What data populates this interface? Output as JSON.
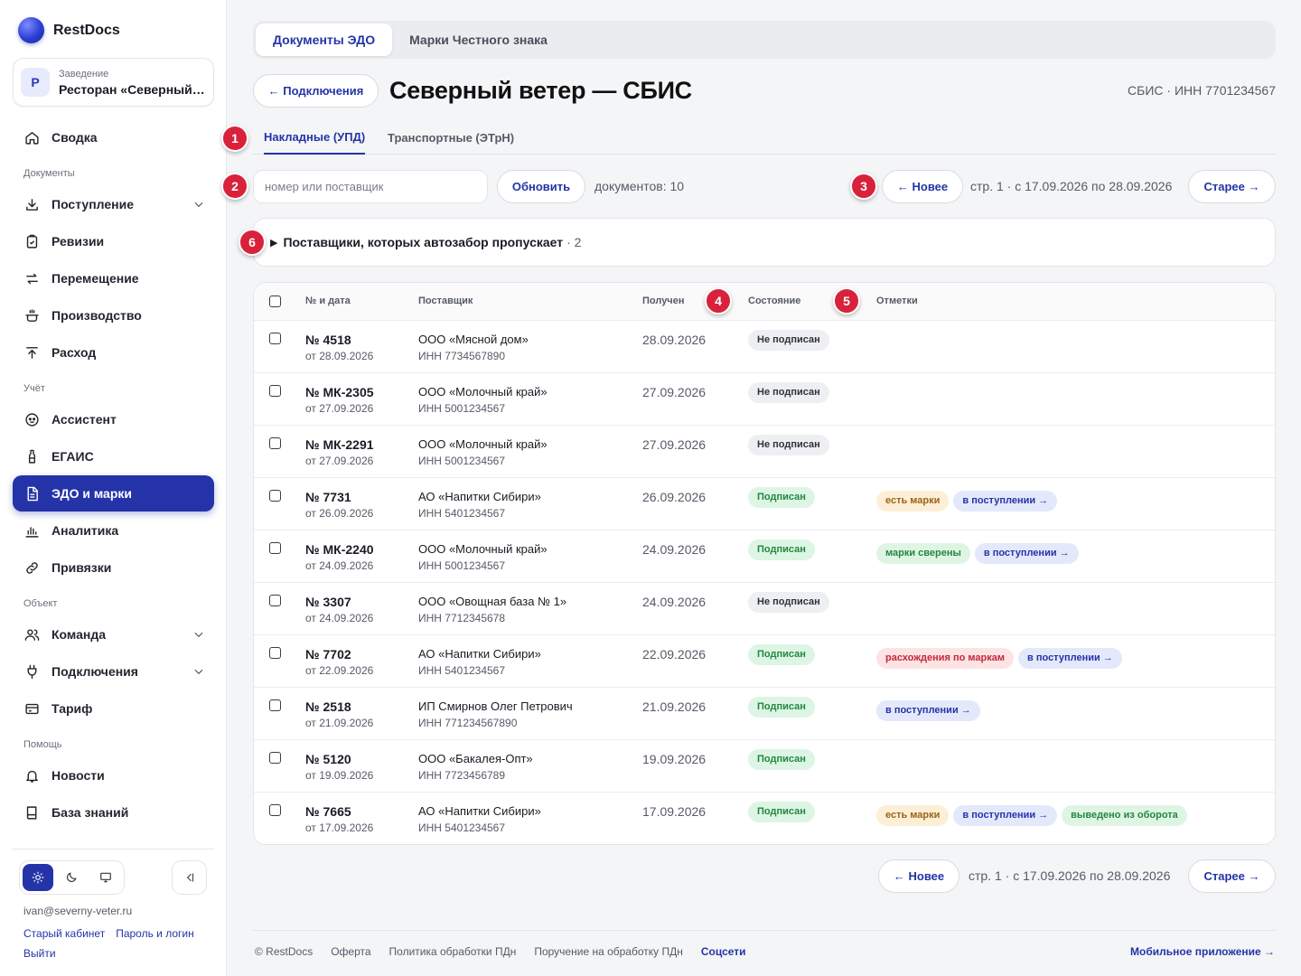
{
  "app": {
    "name": "RestDocs"
  },
  "venue": {
    "caption": "Заведение",
    "avatar": "Р",
    "name": "Ресторан «Северный ветер»"
  },
  "sidebar": {
    "items": [
      {
        "key": "summary",
        "label": "Сводка",
        "icon": "home-icon"
      },
      {
        "key": "section-docs",
        "label": "Документы"
      },
      {
        "key": "receipts",
        "label": "Поступление",
        "icon": "download-icon",
        "expandable": true
      },
      {
        "key": "audits",
        "label": "Ревизии",
        "icon": "clipboard-icon"
      },
      {
        "key": "transfer",
        "label": "Перемещение",
        "icon": "arrows-icon"
      },
      {
        "key": "production",
        "label": "Производство",
        "icon": "pot-icon"
      },
      {
        "key": "expense",
        "label": "Расход",
        "icon": "upload-icon"
      },
      {
        "key": "section-account",
        "label": "Учёт"
      },
      {
        "key": "assistant",
        "label": "Ассистент",
        "icon": "assistant-icon"
      },
      {
        "key": "egais",
        "label": "ЕГАИС",
        "icon": "bottle-icon"
      },
      {
        "key": "edo",
        "label": "ЭДО и марки",
        "icon": "document-icon",
        "active": true
      },
      {
        "key": "analytics",
        "label": "Аналитика",
        "icon": "bar-chart-icon"
      },
      {
        "key": "bindings",
        "label": "Привязки",
        "icon": "link-icon"
      },
      {
        "key": "section-object",
        "label": "Объект"
      },
      {
        "key": "team",
        "label": "Команда",
        "icon": "users-icon",
        "expandable": true
      },
      {
        "key": "connections",
        "label": "Подключения",
        "icon": "plug-icon",
        "expandable": true
      },
      {
        "key": "tariff",
        "label": "Тариф",
        "icon": "card-icon"
      },
      {
        "key": "section-help",
        "label": "Помощь"
      },
      {
        "key": "news",
        "label": "Новости",
        "icon": "bell-icon"
      },
      {
        "key": "kb",
        "label": "База знаний",
        "icon": "book-icon"
      }
    ],
    "theme": {
      "selected": "light"
    },
    "user_email": "ivan@severny-veter.ru",
    "old_cabinet": "Старый кабинет",
    "password_login": "Пароль и логин",
    "logout": "Выйти"
  },
  "top_tabs": [
    "Документы ЭДО",
    "Марки Честного знака"
  ],
  "header": {
    "back_label": "← Подключения",
    "title": "Северный ветер — СБИС",
    "meta": "СБИС · ИНН 7701234567"
  },
  "doc_tabs": [
    "Накладные (УПД)",
    "Транспортные (ЭТрН)"
  ],
  "toolbar": {
    "search_placeholder": "номер или поставщик",
    "search_value": "",
    "refresh_label": "Обновить",
    "doc_count": "документов: 10"
  },
  "pagination": {
    "newer_label": "← Новее",
    "older_label": "Старее →",
    "range": "стр. 1 · с 17.09.2026 по 28.09.2026"
  },
  "skip_panel": {
    "title": "Поставщики, которых автозабор пропускает",
    "count": "· 2"
  },
  "markers": [
    "1",
    "2",
    "3",
    "4",
    "5",
    "6"
  ],
  "table": {
    "columns": [
      "№ и дата",
      "Поставщик",
      "Получен",
      "Состояние",
      "Отметки"
    ],
    "rows": [
      {
        "num": "№ 4518",
        "date": "от 28.09.2026",
        "supplier": "ООО «Мясной дом»",
        "inn": "ИНН 7734567890",
        "received": "28.09.2026",
        "state": "Не подписан",
        "marks": []
      },
      {
        "num": "№ МК-2305",
        "date": "от 27.09.2026",
        "supplier": "ООО «Молочный край»",
        "inn": "ИНН 5001234567",
        "received": "27.09.2026",
        "state": "Не подписан",
        "marks": []
      },
      {
        "num": "№ МК-2291",
        "date": "от 27.09.2026",
        "supplier": "ООО «Молочный край»",
        "inn": "ИНН 5001234567",
        "received": "27.09.2026",
        "state": "Не подписан",
        "marks": []
      },
      {
        "num": "№ 7731",
        "date": "от 26.09.2026",
        "supplier": "АО «Напитки Сибири»",
        "inn": "ИНН 5401234567",
        "received": "26.09.2026",
        "state": "Подписан",
        "marks": [
          {
            "text": "есть марки",
            "kind": "amber"
          },
          {
            "text": "в поступлении →",
            "kind": "blue"
          }
        ]
      },
      {
        "num": "№ МК-2240",
        "date": "от 24.09.2026",
        "supplier": "ООО «Молочный край»",
        "inn": "ИНН 5001234567",
        "received": "24.09.2026",
        "state": "Подписан",
        "marks": [
          {
            "text": "марки сверены",
            "kind": "green"
          },
          {
            "text": "в поступлении →",
            "kind": "blue"
          }
        ]
      },
      {
        "num": "№ 3307",
        "date": "от 24.09.2026",
        "supplier": "ООО «Овощная база № 1»",
        "inn": "ИНН 7712345678",
        "received": "24.09.2026",
        "state": "Не подписан",
        "marks": []
      },
      {
        "num": "№ 7702",
        "date": "от 22.09.2026",
        "supplier": "АО «Напитки Сибири»",
        "inn": "ИНН 5401234567",
        "received": "22.09.2026",
        "state": "Подписан",
        "marks": [
          {
            "text": "расхождения по маркам",
            "kind": "red"
          },
          {
            "text": "в поступлении →",
            "kind": "blue"
          }
        ]
      },
      {
        "num": "№ 2518",
        "date": "от 21.09.2026",
        "supplier": "ИП Смирнов Олег Петрович",
        "inn": "ИНН 771234567890",
        "received": "21.09.2026",
        "state": "Подписан",
        "marks": [
          {
            "text": "в поступлении →",
            "kind": "blue"
          }
        ]
      },
      {
        "num": "№ 5120",
        "date": "от 19.09.2026",
        "supplier": "ООО «Бакалея-Опт»",
        "inn": "ИНН 7723456789",
        "received": "19.09.2026",
        "state": "Подписан",
        "marks": []
      },
      {
        "num": "№ 7665",
        "date": "от 17.09.2026",
        "supplier": "АО «Напитки Сибири»",
        "inn": "ИНН 5401234567",
        "received": "17.09.2026",
        "state": "Подписан",
        "marks": [
          {
            "text": "есть марки",
            "kind": "amber"
          },
          {
            "text": "в поступлении →",
            "kind": "blue"
          },
          {
            "text": "выведено из оборота",
            "kind": "green"
          }
        ]
      }
    ]
  },
  "footer": {
    "copyright": "© RestDocs",
    "offer": "Оферта",
    "policy": "Политика обработки ПДн",
    "assignment": "Поручение на обработку ПДн",
    "social": "Соцсети",
    "mobile_app": "Мобильное приложение →"
  },
  "colors": {
    "accent": "#2434a8",
    "marker": "#d8223b",
    "signed": "#22883f",
    "mismatch": "#c2283a"
  }
}
